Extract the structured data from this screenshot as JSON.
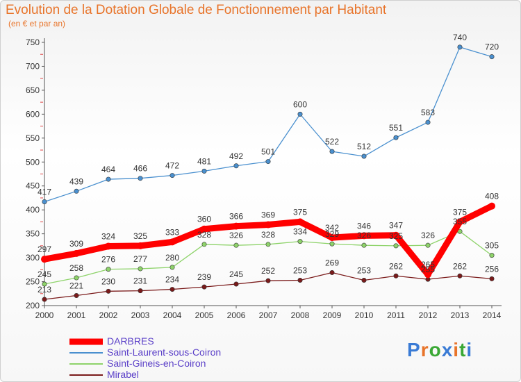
{
  "header": {
    "title": "Evolution de la Dotation Globale de Fonctionnement par Habitant",
    "subtitle": "(en € et par an)"
  },
  "logo": {
    "text": "Proxiti",
    "colors": [
      "#3a7bd5",
      "#e8742a",
      "#3aa835",
      "#3a7bd5",
      "#e8742a",
      "#3aa835",
      "#3a7bd5"
    ]
  },
  "chart_data": {
    "type": "line",
    "title": "Evolution de la Dotation Globale de Fonctionnement par Habitant",
    "subtitle": "(en € et par an)",
    "xlabel": "",
    "ylabel": "",
    "categories": [
      "2000",
      "2001",
      "2002",
      "2003",
      "2004",
      "2005",
      "2006",
      "2007",
      "2008",
      "2009",
      "2010",
      "2011",
      "2012",
      "2013",
      "2014"
    ],
    "ylim": [
      200,
      750
    ],
    "yticks": [
      200,
      250,
      300,
      350,
      400,
      450,
      500,
      550,
      600,
      650,
      700,
      750
    ],
    "grid": false,
    "legend_position": "bottom-left",
    "series": [
      {
        "name": "DARBRES",
        "color": "#ff0000",
        "values": [
          297,
          309,
          324,
          325,
          333,
          360,
          366,
          369,
          375,
          342,
          346,
          347,
          265,
          375,
          408
        ]
      },
      {
        "name": "Saint-Laurent-sous-Coiron",
        "color": "#4a90cf",
        "values": [
          417,
          439,
          464,
          466,
          472,
          481,
          492,
          501,
          600,
          522,
          512,
          551,
          583,
          740,
          720
        ]
      },
      {
        "name": "Saint-Gineis-en-Coiron",
        "color": "#8ed36a",
        "values": [
          245,
          258,
          276,
          277,
          280,
          328,
          326,
          328,
          334,
          329,
          326,
          325,
          326,
          355,
          305
        ]
      },
      {
        "name": "Mirabel",
        "color": "#7a1a1a",
        "values": [
          213,
          221,
          230,
          231,
          234,
          239,
          245,
          252,
          253,
          269,
          253,
          262,
          255,
          262,
          256
        ]
      }
    ],
    "data_labels": {
      "DARBRES": [
        "297",
        "309",
        "324",
        "325",
        "333",
        "360",
        "366",
        "369",
        "375",
        "342",
        "346",
        "347",
        "265",
        "375",
        "408"
      ],
      "Saint-Laurent-sous-Coiron": [
        "417",
        "439",
        "464",
        "466",
        "472",
        "481",
        "492",
        "501",
        "600",
        "522",
        "512",
        "551",
        "583",
        "740",
        "720"
      ],
      "Saint-Gineis-en-Coiron": [
        "245",
        "258",
        "276",
        "277",
        "280",
        "328",
        "326",
        "328",
        "334",
        "329",
        "326",
        "325",
        "326",
        "355",
        "305"
      ],
      "Mirabel": [
        "213",
        "221",
        "230",
        "231",
        "234",
        "239",
        "245",
        "252",
        "253",
        "269",
        "253",
        "262",
        "255",
        "262",
        "256"
      ]
    }
  }
}
